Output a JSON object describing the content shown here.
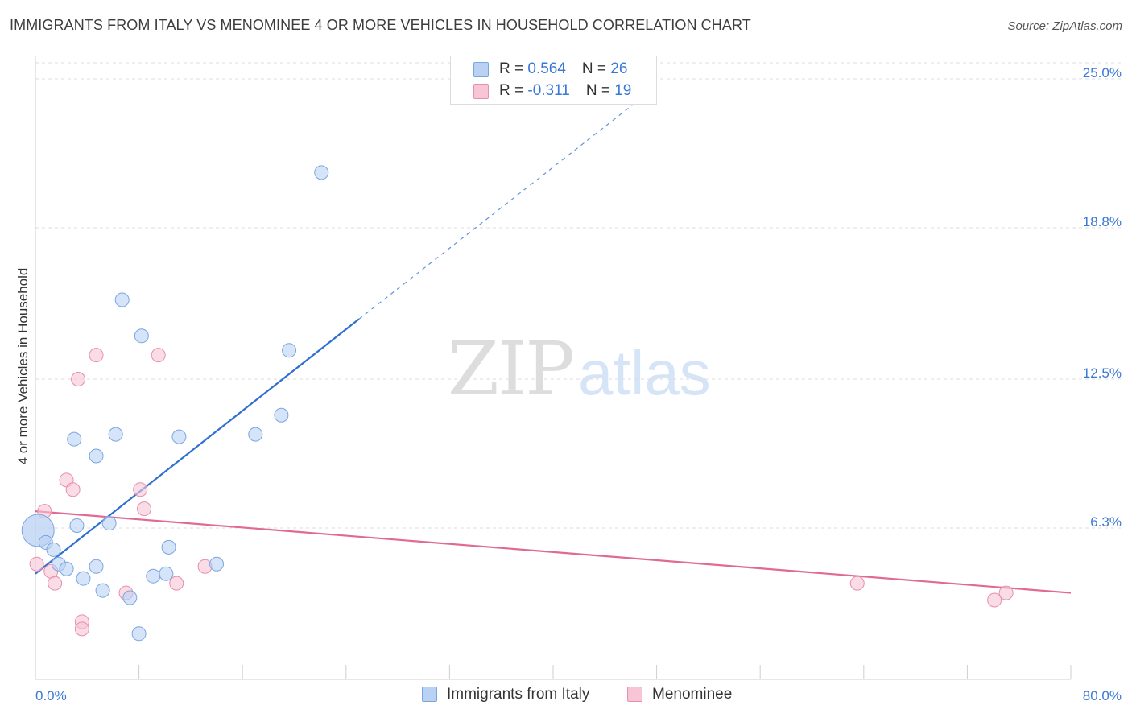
{
  "header": {
    "title": "IMMIGRANTS FROM ITALY VS MENOMINEE 4 OR MORE VEHICLES IN HOUSEHOLD CORRELATION CHART",
    "source": "Source: ZipAtlas.com"
  },
  "watermark": {
    "zip": "ZIP",
    "atlas": "atlas"
  },
  "colors": {
    "blue_fill": "#b9d2f3",
    "blue_stroke": "#7aa6e0",
    "blue_line": "#2f6fd0",
    "pink_fill": "#f7c5d5",
    "pink_stroke": "#e88fab",
    "pink_line": "#e06a93",
    "tick_label": "#3a78d6",
    "grid": "#dcdcdc"
  },
  "legend": {
    "series": [
      {
        "r_label": "R = ",
        "r_value": "0.564",
        "n_label": "N = ",
        "n_value": "26"
      },
      {
        "r_label": "R = ",
        "r_value": "-0.311",
        "n_label": "N = ",
        "n_value": "19"
      }
    ]
  },
  "bottom_legend": [
    "Immigrants from Italy",
    "Menominee"
  ],
  "chart_data": {
    "type": "scatter",
    "title": "IMMIGRANTS FROM ITALY VS MENOMINEE 4 OR MORE VEHICLES IN HOUSEHOLD CORRELATION CHART",
    "xlabel": "",
    "ylabel": "4 or more Vehicles in Household",
    "xlim": [
      0,
      80
    ],
    "ylim": [
      0,
      26.5
    ],
    "x_tick_labels": [
      "0.0%",
      "80.0%"
    ],
    "y_ticks": [
      6.3,
      12.5,
      18.8,
      25.0
    ],
    "y_tick_labels": [
      "6.3%",
      "12.5%",
      "18.8%",
      "25.0%"
    ],
    "grid": true,
    "legend_position": "top-center",
    "series": [
      {
        "name": "Immigrants from Italy",
        "r": 0.564,
        "n": 26,
        "points": [
          {
            "x": 0.2,
            "y": 6.2,
            "big": true
          },
          {
            "x": 0.8,
            "y": 5.7
          },
          {
            "x": 1.4,
            "y": 5.4
          },
          {
            "x": 1.8,
            "y": 4.8
          },
          {
            "x": 2.4,
            "y": 4.6
          },
          {
            "x": 3.0,
            "y": 10.0
          },
          {
            "x": 3.2,
            "y": 6.4
          },
          {
            "x": 3.7,
            "y": 4.2
          },
          {
            "x": 4.7,
            "y": 4.7
          },
          {
            "x": 4.7,
            "y": 9.3
          },
          {
            "x": 5.2,
            "y": 3.7
          },
          {
            "x": 5.7,
            "y": 6.5
          },
          {
            "x": 6.2,
            "y": 10.2
          },
          {
            "x": 6.7,
            "y": 15.8
          },
          {
            "x": 7.3,
            "y": 3.4
          },
          {
            "x": 8.0,
            "y": 1.9
          },
          {
            "x": 8.2,
            "y": 14.3
          },
          {
            "x": 9.1,
            "y": 4.3
          },
          {
            "x": 10.1,
            "y": 4.4
          },
          {
            "x": 10.3,
            "y": 5.5
          },
          {
            "x": 11.1,
            "y": 10.1
          },
          {
            "x": 14.0,
            "y": 4.8
          },
          {
            "x": 17.0,
            "y": 10.2
          },
          {
            "x": 19.0,
            "y": 11.0
          },
          {
            "x": 19.6,
            "y": 13.7
          },
          {
            "x": 22.1,
            "y": 21.1
          }
        ],
        "trend": {
          "x0": 0,
          "y0": 4.4,
          "x1": 25,
          "y1": 15.0,
          "x_ext": 48,
          "y_ext": 24.7
        }
      },
      {
        "name": "Menominee",
        "r": -0.311,
        "n": 19,
        "points": [
          {
            "x": 0.1,
            "y": 4.8
          },
          {
            "x": 0.7,
            "y": 7.0
          },
          {
            "x": 1.2,
            "y": 4.5
          },
          {
            "x": 1.5,
            "y": 4.0
          },
          {
            "x": 2.4,
            "y": 8.3
          },
          {
            "x": 2.9,
            "y": 7.9
          },
          {
            "x": 3.3,
            "y": 12.5
          },
          {
            "x": 3.6,
            "y": 2.4
          },
          {
            "x": 3.6,
            "y": 2.1
          },
          {
            "x": 4.7,
            "y": 13.5
          },
          {
            "x": 7.0,
            "y": 3.6
          },
          {
            "x": 8.1,
            "y": 7.9
          },
          {
            "x": 8.4,
            "y": 7.1
          },
          {
            "x": 9.5,
            "y": 13.5
          },
          {
            "x": 10.9,
            "y": 4.0
          },
          {
            "x": 13.1,
            "y": 4.7
          },
          {
            "x": 63.5,
            "y": 4.0
          },
          {
            "x": 74.1,
            "y": 3.3
          },
          {
            "x": 75.0,
            "y": 3.6
          }
        ],
        "trend": {
          "x0": 0,
          "y0": 7.0,
          "x1": 80,
          "y1": 3.6
        }
      }
    ]
  }
}
